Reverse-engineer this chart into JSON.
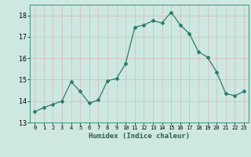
{
  "x": [
    0,
    1,
    2,
    3,
    4,
    5,
    6,
    7,
    8,
    9,
    10,
    11,
    12,
    13,
    14,
    15,
    16,
    17,
    18,
    19,
    20,
    21,
    22,
    23
  ],
  "y": [
    13.5,
    13.7,
    13.85,
    14.0,
    14.9,
    14.45,
    13.9,
    14.05,
    14.95,
    15.05,
    15.75,
    17.45,
    17.55,
    17.75,
    17.65,
    18.15,
    17.55,
    17.15,
    16.3,
    16.05,
    15.35,
    14.35,
    14.25,
    14.45
  ],
  "line_color": "#2d7a6e",
  "marker": "D",
  "marker_size": 2.0,
  "bg_color": "#cde8e0",
  "grid_color_major": "#b0d4ca",
  "grid_color_minor": "#f0f0f0",
  "xlabel": "Humidex (Indice chaleur)",
  "ylim": [
    13,
    18.5
  ],
  "xlim": [
    -0.5,
    23.5
  ],
  "yticks": [
    13,
    14,
    15,
    16,
    17,
    18
  ],
  "xticks": [
    0,
    1,
    2,
    3,
    4,
    5,
    6,
    7,
    8,
    9,
    10,
    11,
    12,
    13,
    14,
    15,
    16,
    17,
    18,
    19,
    20,
    21,
    22,
    23
  ]
}
